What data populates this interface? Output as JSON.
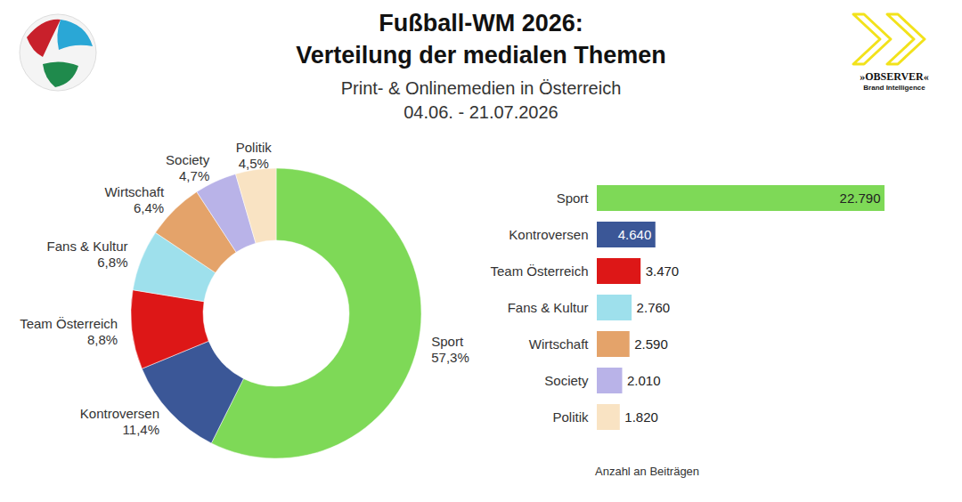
{
  "header": {
    "title": [
      "Fußball-WM 2026:",
      "Verteilung der medialen Themen"
    ],
    "subtitle": [
      "Print- & Onlinemedien in Österreich",
      "04.06. - 21.07.2026"
    ],
    "logo": [
      "»OBSERVER«",
      "Brand Intelligence"
    ]
  },
  "chart_data": [
    {
      "type": "pie",
      "categories": [
        "Sport",
        "Kontroversen",
        "Team Österreich",
        "Fans & Kultur",
        "Wirtschaft",
        "Society",
        "Politik"
      ],
      "values": [
        57.3,
        11.4,
        8.8,
        6.8,
        6.4,
        4.7,
        4.5
      ],
      "value_labels": [
        "57,3%",
        "11,4%",
        "8,8%",
        "6,8%",
        "6,4%",
        "4,7%",
        "4,5%"
      ],
      "colors": [
        "#7ed957",
        "#3b5797",
        "#dd1717",
        "#9ee0ec",
        "#e4a36a",
        "#b9b3e8",
        "#f9e3c3"
      ],
      "data_labels": true
    },
    {
      "type": "bar",
      "orientation": "horizontal",
      "categories": [
        "Sport",
        "Kontroversen",
        "Team Österreich",
        "Fans & Kultur",
        "Wirtschaft",
        "Society",
        "Politik"
      ],
      "values": [
        22790,
        4640,
        3470,
        2760,
        2590,
        2010,
        1820
      ],
      "value_labels": [
        "22.790",
        "4.640",
        "3.470",
        "2.760",
        "2.590",
        "2.010",
        "1.820"
      ],
      "colors": [
        "#7ed957",
        "#3b5797",
        "#dd1717",
        "#9ee0ec",
        "#e4a36a",
        "#b9b3e8",
        "#f9e3c3"
      ],
      "xlabel": "Anzahl an Beiträgen",
      "xlim": [
        0,
        22790
      ],
      "tick_labels": "y",
      "data_labels": true
    }
  ]
}
